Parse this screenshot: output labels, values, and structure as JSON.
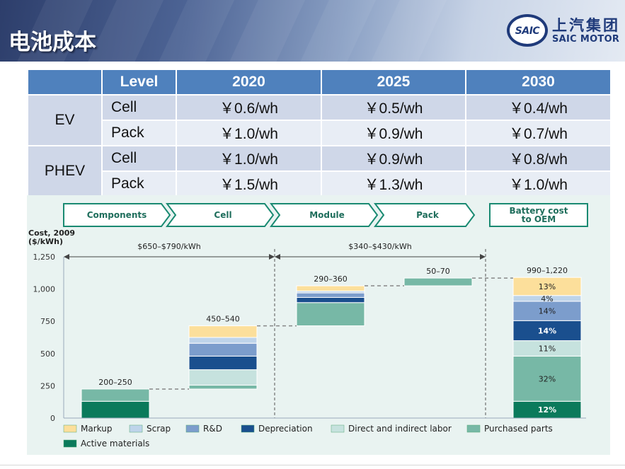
{
  "header": {
    "title": "电池成本",
    "logo": {
      "mark": "SAIC",
      "name_cn": "上汽集团",
      "name_en": "SAIC MOTOR"
    }
  },
  "price_table": {
    "headers": [
      "",
      "Level",
      "2020",
      "2025",
      "2030"
    ],
    "groups": [
      {
        "name": "EV",
        "rows": [
          {
            "level": "Cell",
            "values": [
              "￥0.6/wh",
              "￥0.5/wh",
              "￥0.4/wh"
            ]
          },
          {
            "level": "Pack",
            "values": [
              "￥1.0/wh",
              "￥0.9/wh",
              "￥0.7/wh"
            ]
          }
        ]
      },
      {
        "name": "PHEV",
        "rows": [
          {
            "level": "Cell",
            "values": [
              "￥1.0/wh",
              "￥0.9/wh",
              "￥0.8/wh"
            ]
          },
          {
            "level": "Pack",
            "values": [
              "￥1.5/wh",
              "￥1.3/wh",
              "￥1.0/wh"
            ]
          }
        ]
      }
    ]
  },
  "chart_data": {
    "type": "bar",
    "subtype": "waterfall",
    "chain_steps": [
      "Components",
      "Cell",
      "Module",
      "Pack",
      "Battery cost\nto OEM"
    ],
    "ylabel": "Cost, 2009\n($/kWh)",
    "ylim": [
      0,
      1250
    ],
    "yticks": [
      0,
      250,
      500,
      750,
      1000,
      1250
    ],
    "ytick_labels": [
      "0",
      "250",
      "500",
      "750",
      "1,000",
      "1,250"
    ],
    "spans": [
      {
        "label": "$650–$790/kWh",
        "from_step": 0,
        "to_step": 2
      },
      {
        "label": "$340–$430/kWh",
        "from_step": 2,
        "to_step": 4
      }
    ],
    "colors": {
      "Markup": "#fcdf9b",
      "Scrap": "#bed4ea",
      "R&D": "#7c9dcc",
      "Depreciation": "#1a4f8e",
      "Direct and indirect labor": "#c6e2de",
      "Purchased parts": "#77b8a6",
      "Active materials": "#0b7a5b"
    },
    "categories": [
      "Components",
      "Cell",
      "Module",
      "Pack",
      "Battery cost to OEM"
    ],
    "bars": [
      {
        "category": "Components",
        "range_label": "200–250",
        "base": 0,
        "segments": [
          {
            "series": "Active materials",
            "value": 130
          },
          {
            "series": "Purchased parts",
            "value": 95
          }
        ]
      },
      {
        "category": "Cell",
        "range_label": "450–540",
        "base": 225,
        "segments": [
          {
            "series": "Purchased parts",
            "value": 30
          },
          {
            "series": "Direct and indirect labor",
            "value": 120
          },
          {
            "series": "Depreciation",
            "value": 105
          },
          {
            "series": "R&D",
            "value": 100
          },
          {
            "series": "Scrap",
            "value": 45
          },
          {
            "series": "Markup",
            "value": 90
          }
        ]
      },
      {
        "category": "Module",
        "range_label": "290–360",
        "base": 715,
        "segments": [
          {
            "series": "Purchased parts",
            "value": 180
          },
          {
            "series": "Depreciation",
            "value": 40
          },
          {
            "series": "R&D",
            "value": 35
          },
          {
            "series": "Scrap",
            "value": 15
          },
          {
            "series": "Markup",
            "value": 40
          }
        ]
      },
      {
        "category": "Pack",
        "range_label": "50–70",
        "base": 1025,
        "segments": [
          {
            "series": "Purchased parts",
            "value": 60
          }
        ]
      },
      {
        "category": "Battery cost to OEM",
        "range_label": "990–1,220",
        "base": 0,
        "segments": [
          {
            "series": "Active materials",
            "value": 130,
            "label": "12%"
          },
          {
            "series": "Purchased parts",
            "value": 350,
            "label": "32%"
          },
          {
            "series": "Direct and indirect labor",
            "value": 120,
            "label": "11%"
          },
          {
            "series": "Depreciation",
            "value": 155,
            "label": "14%"
          },
          {
            "series": "R&D",
            "value": 150,
            "label": "14%"
          },
          {
            "series": "Scrap",
            "value": 45,
            "label": "4%"
          },
          {
            "series": "Markup",
            "value": 140,
            "label": "13%"
          }
        ]
      }
    ],
    "legend": [
      "Markup",
      "Scrap",
      "R&D",
      "Depreciation",
      "Direct and indirect labor",
      "Purchased parts",
      "Active materials"
    ],
    "legend_position": "bottom",
    "grid": false
  }
}
